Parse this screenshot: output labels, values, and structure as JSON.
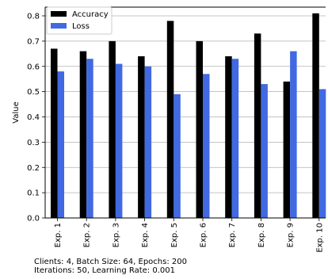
{
  "chart_data": {
    "type": "bar",
    "title": "",
    "xlabel": "",
    "ylabel": "Value",
    "ylim": [
      0,
      0.8
    ],
    "yticks": [
      0.0,
      0.1,
      0.2,
      0.3,
      0.4,
      0.5,
      0.6,
      0.7,
      0.8
    ],
    "ytick_labels": [
      "0.0",
      "0.1",
      "0.2",
      "0.3",
      "0.4",
      "0.5",
      "0.6",
      "0.7",
      "0.8"
    ],
    "grid": "horizontal",
    "legend_position": "top-left",
    "categories": [
      "Exp. 1",
      "Exp. 2",
      "Exp. 3",
      "Exp. 4",
      "Exp. 5",
      "Exp. 6",
      "Exp. 7",
      "Exp. 8",
      "Exp. 9",
      "Exp. 10"
    ],
    "series": [
      {
        "name": "Accuracy",
        "color": "#000000",
        "values": [
          0.67,
          0.66,
          0.7,
          0.64,
          0.78,
          0.7,
          0.64,
          0.73,
          0.54,
          0.81
        ]
      },
      {
        "name": "Loss",
        "color": "#4169e1",
        "values": [
          0.58,
          0.63,
          0.61,
          0.6,
          0.49,
          0.57,
          0.63,
          0.53,
          0.66,
          0.51
        ]
      }
    ],
    "annotation_lines": [
      "Clients: 4, Batch Size: 64, Epochs: 200",
      "Iterations: 50, Learning Rate: 0.001"
    ]
  }
}
